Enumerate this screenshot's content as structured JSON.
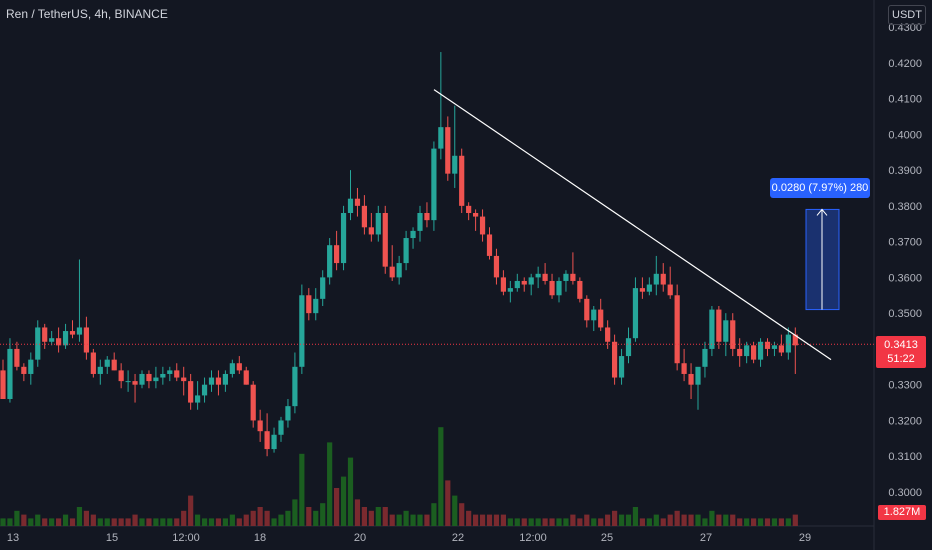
{
  "header": {
    "title": "Ren / TetherUS, 4h, BINANCE",
    "currency": "USDT"
  },
  "price_label": {
    "price": "0.3413",
    "countdown": "51:22"
  },
  "volume_label": "1.827M",
  "measure_label": "0.0280 (7.97%) 280",
  "colors": {
    "up": "#26a69a",
    "down": "#ef5350",
    "vol_up": "#1b5e20",
    "vol_down": "#7a2a2f",
    "accent": "#2962ff",
    "current_price": "#f23645"
  },
  "chart_data": {
    "type": "candlestick",
    "title": "Ren / TetherUS, 4h, BINANCE",
    "ylabel": "USDT",
    "ylim": [
      0.297,
      0.431
    ],
    "yticks": [
      "0.4300",
      "0.4200",
      "0.4100",
      "0.4000",
      "0.3900",
      "0.3800",
      "0.3700",
      "0.3600",
      "0.3500",
      "0.3300",
      "0.3200",
      "0.3100",
      "0.3000"
    ],
    "xticks": [
      "13",
      "15",
      "12:00",
      "18",
      "20",
      "22",
      "12:00",
      "25",
      "27",
      "29"
    ],
    "current_price": 0.3413,
    "candles": [
      [
        0.334,
        0.337,
        0.326,
        0.326
      ],
      [
        0.326,
        0.343,
        0.325,
        0.34
      ],
      [
        0.34,
        0.342,
        0.334,
        0.335
      ],
      [
        0.335,
        0.336,
        0.331,
        0.333
      ],
      [
        0.333,
        0.339,
        0.33,
        0.337
      ],
      [
        0.337,
        0.348,
        0.335,
        0.346
      ],
      [
        0.346,
        0.347,
        0.34,
        0.342
      ],
      [
        0.342,
        0.345,
        0.341,
        0.343
      ],
      [
        0.343,
        0.346,
        0.339,
        0.341
      ],
      [
        0.341,
        0.347,
        0.34,
        0.345
      ],
      [
        0.345,
        0.348,
        0.343,
        0.344
      ],
      [
        0.344,
        0.365,
        0.342,
        0.346
      ],
      [
        0.346,
        0.349,
        0.337,
        0.339
      ],
      [
        0.339,
        0.34,
        0.332,
        0.333
      ],
      [
        0.333,
        0.337,
        0.33,
        0.335
      ],
      [
        0.335,
        0.338,
        0.333,
        0.337
      ],
      [
        0.337,
        0.339,
        0.334,
        0.334
      ],
      [
        0.334,
        0.336,
        0.329,
        0.331
      ],
      [
        0.331,
        0.334,
        0.328,
        0.331
      ],
      [
        0.331,
        0.333,
        0.325,
        0.33
      ],
      [
        0.33,
        0.334,
        0.329,
        0.333
      ],
      [
        0.333,
        0.334,
        0.329,
        0.331
      ],
      [
        0.331,
        0.335,
        0.329,
        0.332
      ],
      [
        0.332,
        0.335,
        0.33,
        0.333
      ],
      [
        0.333,
        0.335,
        0.331,
        0.334
      ],
      [
        0.334,
        0.336,
        0.331,
        0.332
      ],
      [
        0.332,
        0.335,
        0.327,
        0.331
      ],
      [
        0.331,
        0.333,
        0.323,
        0.325
      ],
      [
        0.325,
        0.331,
        0.323,
        0.327
      ],
      [
        0.327,
        0.332,
        0.325,
        0.33
      ],
      [
        0.33,
        0.334,
        0.328,
        0.332
      ],
      [
        0.332,
        0.334,
        0.327,
        0.33
      ],
      [
        0.33,
        0.334,
        0.328,
        0.333
      ],
      [
        0.333,
        0.337,
        0.332,
        0.336
      ],
      [
        0.336,
        0.338,
        0.333,
        0.334
      ],
      [
        0.334,
        0.335,
        0.33,
        0.33
      ],
      [
        0.33,
        0.331,
        0.318,
        0.32
      ],
      [
        0.32,
        0.323,
        0.314,
        0.317
      ],
      [
        0.317,
        0.322,
        0.31,
        0.312
      ],
      [
        0.312,
        0.318,
        0.311,
        0.316
      ],
      [
        0.316,
        0.321,
        0.314,
        0.32
      ],
      [
        0.32,
        0.326,
        0.318,
        0.324
      ],
      [
        0.324,
        0.339,
        0.322,
        0.335
      ],
      [
        0.335,
        0.358,
        0.333,
        0.355
      ],
      [
        0.355,
        0.357,
        0.348,
        0.35
      ],
      [
        0.35,
        0.357,
        0.348,
        0.354
      ],
      [
        0.354,
        0.362,
        0.352,
        0.36
      ],
      [
        0.36,
        0.371,
        0.358,
        0.369
      ],
      [
        0.369,
        0.373,
        0.362,
        0.364
      ],
      [
        0.364,
        0.38,
        0.362,
        0.378
      ],
      [
        0.378,
        0.39,
        0.376,
        0.382
      ],
      [
        0.382,
        0.385,
        0.377,
        0.38
      ],
      [
        0.38,
        0.383,
        0.372,
        0.374
      ],
      [
        0.374,
        0.378,
        0.37,
        0.372
      ],
      [
        0.372,
        0.38,
        0.37,
        0.378
      ],
      [
        0.378,
        0.38,
        0.361,
        0.363
      ],
      [
        0.363,
        0.369,
        0.359,
        0.36
      ],
      [
        0.36,
        0.366,
        0.358,
        0.364
      ],
      [
        0.364,
        0.373,
        0.362,
        0.371
      ],
      [
        0.371,
        0.374,
        0.368,
        0.373
      ],
      [
        0.373,
        0.38,
        0.37,
        0.378
      ],
      [
        0.378,
        0.381,
        0.374,
        0.376
      ],
      [
        0.376,
        0.398,
        0.373,
        0.396
      ],
      [
        0.396,
        0.423,
        0.393,
        0.402
      ],
      [
        0.402,
        0.405,
        0.387,
        0.389
      ],
      [
        0.389,
        0.408,
        0.385,
        0.394
      ],
      [
        0.394,
        0.396,
        0.378,
        0.38
      ],
      [
        0.38,
        0.381,
        0.376,
        0.378
      ],
      [
        0.378,
        0.379,
        0.373,
        0.377
      ],
      [
        0.377,
        0.379,
        0.37,
        0.372
      ],
      [
        0.372,
        0.374,
        0.365,
        0.366
      ],
      [
        0.366,
        0.368,
        0.358,
        0.36
      ],
      [
        0.36,
        0.362,
        0.355,
        0.356
      ],
      [
        0.356,
        0.359,
        0.353,
        0.357
      ],
      [
        0.357,
        0.361,
        0.356,
        0.359
      ],
      [
        0.359,
        0.36,
        0.356,
        0.358
      ],
      [
        0.358,
        0.361,
        0.355,
        0.36
      ],
      [
        0.36,
        0.363,
        0.357,
        0.361
      ],
      [
        0.361,
        0.364,
        0.358,
        0.359
      ],
      [
        0.359,
        0.361,
        0.354,
        0.355
      ],
      [
        0.355,
        0.36,
        0.353,
        0.359
      ],
      [
        0.359,
        0.362,
        0.356,
        0.361
      ],
      [
        0.361,
        0.367,
        0.358,
        0.359
      ],
      [
        0.359,
        0.36,
        0.353,
        0.354
      ],
      [
        0.354,
        0.355,
        0.346,
        0.348
      ],
      [
        0.348,
        0.352,
        0.345,
        0.351
      ],
      [
        0.351,
        0.354,
        0.345,
        0.346
      ],
      [
        0.346,
        0.348,
        0.34,
        0.342
      ],
      [
        0.342,
        0.344,
        0.33,
        0.332
      ],
      [
        0.332,
        0.34,
        0.33,
        0.338
      ],
      [
        0.338,
        0.346,
        0.336,
        0.343
      ],
      [
        0.343,
        0.36,
        0.342,
        0.357
      ],
      [
        0.357,
        0.36,
        0.354,
        0.356
      ],
      [
        0.356,
        0.36,
        0.355,
        0.358
      ],
      [
        0.358,
        0.366,
        0.355,
        0.361
      ],
      [
        0.361,
        0.364,
        0.356,
        0.358
      ],
      [
        0.358,
        0.363,
        0.354,
        0.355
      ],
      [
        0.355,
        0.358,
        0.334,
        0.336
      ],
      [
        0.336,
        0.34,
        0.331,
        0.333
      ],
      [
        0.333,
        0.336,
        0.326,
        0.33
      ],
      [
        0.33,
        0.334,
        0.323,
        0.335
      ],
      [
        0.335,
        0.342,
        0.332,
        0.34
      ],
      [
        0.34,
        0.352,
        0.338,
        0.351
      ],
      [
        0.351,
        0.352,
        0.34,
        0.342
      ],
      [
        0.342,
        0.35,
        0.338,
        0.348
      ],
      [
        0.348,
        0.35,
        0.338,
        0.34
      ],
      [
        0.34,
        0.343,
        0.335,
        0.338
      ],
      [
        0.338,
        0.342,
        0.336,
        0.341
      ],
      [
        0.341,
        0.342,
        0.336,
        0.337
      ],
      [
        0.337,
        0.343,
        0.335,
        0.342
      ],
      [
        0.342,
        0.343,
        0.338,
        0.34
      ],
      [
        0.34,
        0.342,
        0.338,
        0.341
      ],
      [
        0.341,
        0.344,
        0.338,
        0.339
      ],
      [
        0.339,
        0.346,
        0.337,
        0.344
      ],
      [
        0.344,
        0.346,
        0.333,
        0.341
      ]
    ],
    "volume": [
      {
        "v": 2,
        "up": true
      },
      {
        "v": 2,
        "up": true
      },
      {
        "v": 4,
        "up": true
      },
      {
        "v": 3,
        "up": false
      },
      {
        "v": 2,
        "up": true
      },
      {
        "v": 3,
        "up": true
      },
      {
        "v": 2,
        "up": false
      },
      {
        "v": 2,
        "up": true
      },
      {
        "v": 2,
        "up": false
      },
      {
        "v": 3,
        "up": true
      },
      {
        "v": 2,
        "up": false
      },
      {
        "v": 5,
        "up": true
      },
      {
        "v": 4,
        "up": false
      },
      {
        "v": 3,
        "up": false
      },
      {
        "v": 2,
        "up": true
      },
      {
        "v": 2,
        "up": true
      },
      {
        "v": 2,
        "up": false
      },
      {
        "v": 2,
        "up": false
      },
      {
        "v": 2,
        "up": false
      },
      {
        "v": 3,
        "up": false
      },
      {
        "v": 2,
        "up": true
      },
      {
        "v": 2,
        "up": false
      },
      {
        "v": 2,
        "up": true
      },
      {
        "v": 2,
        "up": true
      },
      {
        "v": 2,
        "up": true
      },
      {
        "v": 2,
        "up": false
      },
      {
        "v": 4,
        "up": false
      },
      {
        "v": 8,
        "up": false
      },
      {
        "v": 3,
        "up": true
      },
      {
        "v": 2,
        "up": true
      },
      {
        "v": 2,
        "up": true
      },
      {
        "v": 2,
        "up": false
      },
      {
        "v": 2,
        "up": true
      },
      {
        "v": 3,
        "up": true
      },
      {
        "v": 2,
        "up": false
      },
      {
        "v": 3,
        "up": false
      },
      {
        "v": 4,
        "up": false
      },
      {
        "v": 5,
        "up": false
      },
      {
        "v": 4,
        "up": false
      },
      {
        "v": 2,
        "up": true
      },
      {
        "v": 3,
        "up": true
      },
      {
        "v": 4,
        "up": true
      },
      {
        "v": 7,
        "up": true
      },
      {
        "v": 19,
        "up": true
      },
      {
        "v": 5,
        "up": false
      },
      {
        "v": 4,
        "up": true
      },
      {
        "v": 6,
        "up": true
      },
      {
        "v": 22,
        "up": true
      },
      {
        "v": 10,
        "up": false
      },
      {
        "v": 13,
        "up": true
      },
      {
        "v": 18,
        "up": true
      },
      {
        "v": 7,
        "up": false
      },
      {
        "v": 5,
        "up": false
      },
      {
        "v": 4,
        "up": false
      },
      {
        "v": 5,
        "up": true
      },
      {
        "v": 5,
        "up": false
      },
      {
        "v": 3,
        "up": false
      },
      {
        "v": 3,
        "up": true
      },
      {
        "v": 4,
        "up": true
      },
      {
        "v": 3,
        "up": true
      },
      {
        "v": 3,
        "up": true
      },
      {
        "v": 3,
        "up": false
      },
      {
        "v": 6,
        "up": true
      },
      {
        "v": 26,
        "up": true
      },
      {
        "v": 12,
        "up": false
      },
      {
        "v": 8,
        "up": true
      },
      {
        "v": 6,
        "up": false
      },
      {
        "v": 4,
        "up": false
      },
      {
        "v": 3,
        "up": false
      },
      {
        "v": 3,
        "up": false
      },
      {
        "v": 3,
        "up": false
      },
      {
        "v": 3,
        "up": false
      },
      {
        "v": 3,
        "up": false
      },
      {
        "v": 2,
        "up": true
      },
      {
        "v": 2,
        "up": true
      },
      {
        "v": 2,
        "up": false
      },
      {
        "v": 2,
        "up": true
      },
      {
        "v": 2,
        "up": true
      },
      {
        "v": 2,
        "up": false
      },
      {
        "v": 2,
        "up": false
      },
      {
        "v": 2,
        "up": true
      },
      {
        "v": 2,
        "up": true
      },
      {
        "v": 3,
        "up": false
      },
      {
        "v": 2,
        "up": false
      },
      {
        "v": 3,
        "up": false
      },
      {
        "v": 2,
        "up": true
      },
      {
        "v": 2,
        "up": false
      },
      {
        "v": 3,
        "up": false
      },
      {
        "v": 4,
        "up": false
      },
      {
        "v": 3,
        "up": true
      },
      {
        "v": 3,
        "up": true
      },
      {
        "v": 5,
        "up": true
      },
      {
        "v": 2,
        "up": false
      },
      {
        "v": 2,
        "up": true
      },
      {
        "v": 3,
        "up": true
      },
      {
        "v": 2,
        "up": false
      },
      {
        "v": 3,
        "up": false
      },
      {
        "v": 4,
        "up": false
      },
      {
        "v": 3,
        "up": false
      },
      {
        "v": 3,
        "up": false
      },
      {
        "v": 3,
        "up": true
      },
      {
        "v": 2,
        "up": true
      },
      {
        "v": 4,
        "up": true
      },
      {
        "v": 3,
        "up": false
      },
      {
        "v": 3,
        "up": true
      },
      {
        "v": 3,
        "up": false
      },
      {
        "v": 2,
        "up": false
      },
      {
        "v": 2,
        "up": true
      },
      {
        "v": 2,
        "up": false
      },
      {
        "v": 2,
        "up": true
      },
      {
        "v": 2,
        "up": false
      },
      {
        "v": 2,
        "up": true
      },
      {
        "v": 2,
        "up": false
      },
      {
        "v": 2,
        "up": true
      },
      {
        "v": 3,
        "up": false
      }
    ],
    "trendline": {
      "from": {
        "date": "21",
        "price": 0.4125
      },
      "to": {
        "date": "28",
        "price": 0.337
      }
    },
    "measure": {
      "from_price": 0.351,
      "to_price": 0.379,
      "change": "0.0280 (7.97%) 280"
    }
  }
}
